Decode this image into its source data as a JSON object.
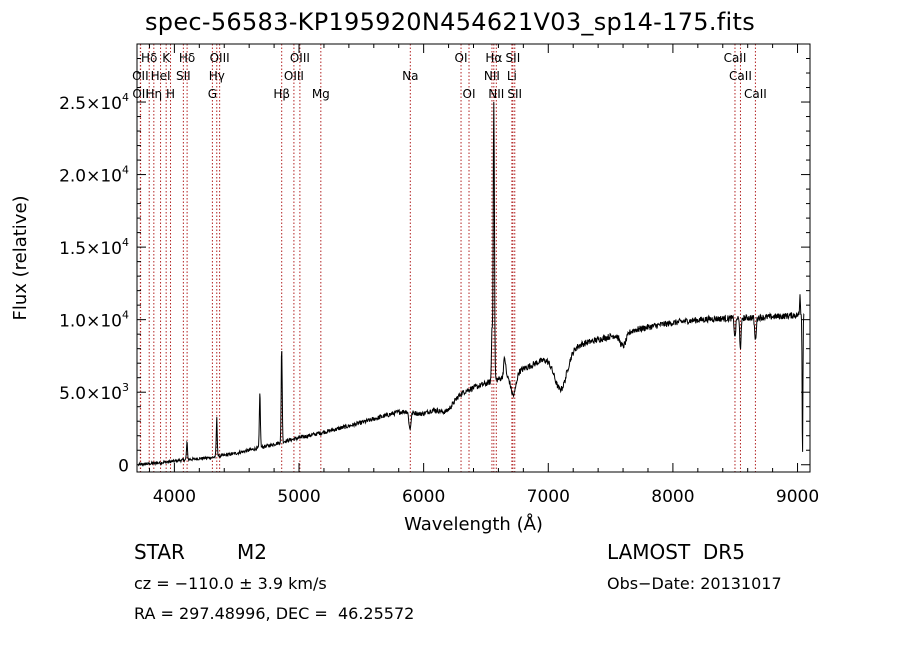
{
  "chart_data": {
    "type": "line",
    "title": "spec-56583-KP195920N454621V03_sp14-175.fits",
    "xlabel": "Wavelength (Å)",
    "ylabel": "Flux (relative)",
    "xlim": [
      3700,
      9100
    ],
    "ylim": [
      -500,
      29000
    ],
    "xticks": [
      {
        "value": 4000,
        "label": "4000"
      },
      {
        "value": 5000,
        "label": "5000"
      },
      {
        "value": 6000,
        "label": "6000"
      },
      {
        "value": 7000,
        "label": "7000"
      },
      {
        "value": 8000,
        "label": "8000"
      },
      {
        "value": 9000,
        "label": "9000"
      }
    ],
    "yticks": [
      {
        "value": 0,
        "mant": "0",
        "exp": ""
      },
      {
        "value": 5000,
        "mant": "5.0×10",
        "exp": "3"
      },
      {
        "value": 10000,
        "mant": "1.0×10",
        "exp": "4"
      },
      {
        "value": 15000,
        "mant": "1.5×10",
        "exp": "4"
      },
      {
        "value": 20000,
        "mant": "2.0×10",
        "exp": "4"
      },
      {
        "value": 25000,
        "mant": "2.5×10",
        "exp": "4"
      }
    ],
    "lines": [
      {
        "label": "Hδ",
        "x": 3798,
        "row": 0
      },
      {
        "label": "OII",
        "x": 3727,
        "row": 1
      },
      {
        "label": "OII",
        "x": 3729,
        "row": 2
      },
      {
        "label": "Hη",
        "x": 3835,
        "row": 2
      },
      {
        "label": "K",
        "x": 3934,
        "row": 0
      },
      {
        "label": "HeI",
        "x": 3889,
        "row": 1
      },
      {
        "label": "H",
        "x": 3969,
        "row": 2
      },
      {
        "label": "Hδ",
        "x": 4102,
        "row": 0
      },
      {
        "label": "SII",
        "x": 4072,
        "row": 1
      },
      {
        "label": "OIII",
        "x": 4363,
        "row": 0
      },
      {
        "label": "Hγ",
        "x": 4340,
        "row": 1
      },
      {
        "label": "G",
        "x": 4305,
        "row": 2
      },
      {
        "label": "OIII",
        "x": 5007,
        "row": 0
      },
      {
        "label": "OIII",
        "x": 4959,
        "row": 1
      },
      {
        "label": "Hβ",
        "x": 4861,
        "row": 2
      },
      {
        "label": "Mg",
        "x": 5175,
        "row": 2
      },
      {
        "label": "Na",
        "x": 5893,
        "row": 1
      },
      {
        "label": "OI",
        "x": 6300,
        "row": 0
      },
      {
        "label": "OI",
        "x": 6364,
        "row": 2
      },
      {
        "label": "Hα",
        "x": 6563,
        "row": 0
      },
      {
        "label": "SII",
        "x": 6716,
        "row": 0
      },
      {
        "label": "NII",
        "x": 6548,
        "row": 1
      },
      {
        "label": "Li",
        "x": 6708,
        "row": 1
      },
      {
        "label": "NII",
        "x": 6583,
        "row": 2
      },
      {
        "label": "SII",
        "x": 6731,
        "row": 2
      },
      {
        "label": "CaII",
        "x": 8498,
        "row": 0
      },
      {
        "label": "CaII",
        "x": 8542,
        "row": 1
      },
      {
        "label": "CaII",
        "x": 8662,
        "row": 2
      }
    ],
    "series": [
      {
        "continuum": [
          [
            3700,
            0
          ],
          [
            3900,
            150
          ],
          [
            4100,
            350
          ],
          [
            4300,
            500
          ],
          [
            4500,
            800
          ],
          [
            4700,
            1200
          ],
          [
            4900,
            1650
          ],
          [
            5100,
            2050
          ],
          [
            5300,
            2450
          ],
          [
            5500,
            2900
          ],
          [
            5700,
            3400
          ],
          [
            5900,
            3900
          ],
          [
            6100,
            4400
          ],
          [
            6300,
            5000
          ],
          [
            6500,
            5600
          ],
          [
            6700,
            6200
          ],
          [
            6900,
            7000
          ],
          [
            7100,
            7800
          ],
          [
            7300,
            8400
          ],
          [
            7500,
            8850
          ],
          [
            7700,
            9300
          ],
          [
            7900,
            9650
          ],
          [
            8100,
            9900
          ],
          [
            8300,
            10050
          ],
          [
            8500,
            10100
          ],
          [
            8700,
            10150
          ],
          [
            8900,
            10250
          ],
          [
            9050,
            10350
          ]
        ],
        "features": [
          {
            "x": 4101,
            "w": 4,
            "amp": 1200
          },
          {
            "x": 4340,
            "w": 4,
            "amp": 2600
          },
          {
            "x": 4686,
            "w": 4,
            "amp": 3800
          },
          {
            "x": 4861,
            "w": 4,
            "amp": 6600
          },
          {
            "x": 5890,
            "w": 8,
            "amp": -1200
          },
          {
            "x": 6000,
            "w": 80,
            "amp": -600
          },
          {
            "x": 6180,
            "w": 60,
            "amp": -900
          },
          {
            "x": 6563,
            "w": 5,
            "amp": 19000
          },
          {
            "x": 6548,
            "w": 4,
            "amp": 3500
          },
          {
            "x": 6650,
            "w": 8,
            "amp": 1300
          },
          {
            "x": 6720,
            "w": 20,
            "amp": -1500
          },
          {
            "x": 7100,
            "w": 50,
            "amp": -2600
          },
          {
            "x": 7600,
            "w": 25,
            "amp": -900
          },
          {
            "x": 8498,
            "w": 6,
            "amp": -1300
          },
          {
            "x": 8542,
            "w": 6,
            "amp": -2000
          },
          {
            "x": 8662,
            "w": 6,
            "amp": -1600
          },
          {
            "x": 9020,
            "w": 3,
            "amp": 1500
          },
          {
            "x": 9040,
            "w": 3,
            "amp": -10000
          }
        ],
        "noise": 220
      }
    ]
  },
  "info": {
    "obj_class": "STAR",
    "subclass": "M2",
    "survey": "LAMOST  DR5",
    "cz": "cz = −110.0 ± 3.9 km/s",
    "obs_date": "Obs−Date: 20131017",
    "coords": "RA = 297.48996, DEC =  46.25572"
  },
  "colors": {
    "axis": "#000000",
    "spectrum": "#000000",
    "line_marker": "#b22222"
  }
}
